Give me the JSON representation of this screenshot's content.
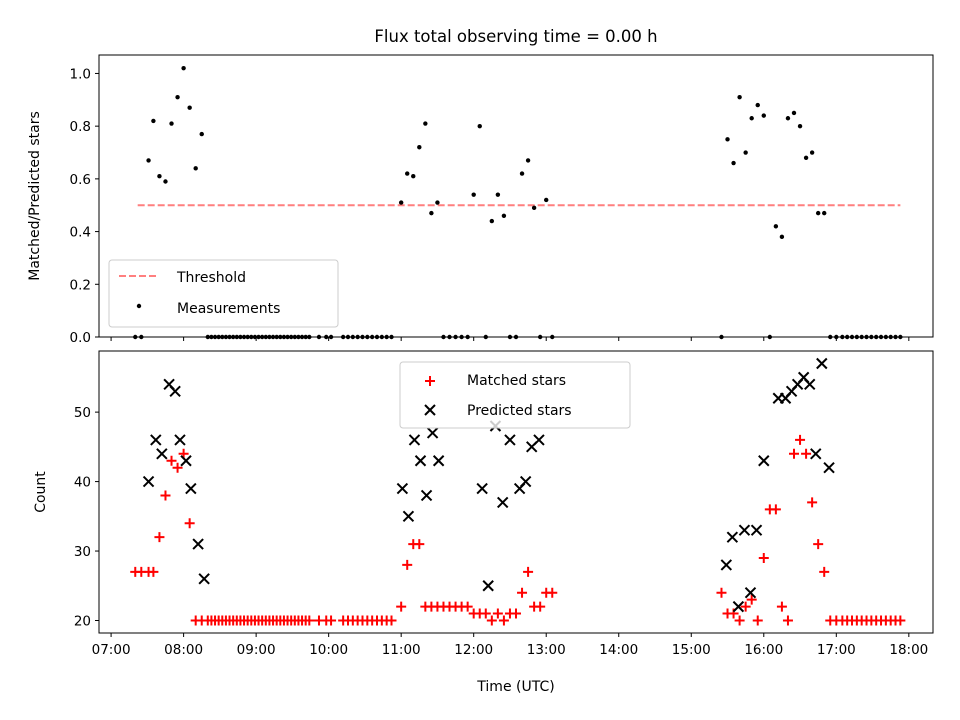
{
  "title": "Flux total observing time = 0.00 h",
  "chart_data": [
    {
      "type": "scatter",
      "ylabel": "Matched/Predicted stars",
      "xlabel": "",
      "xlim": [
        "06:50",
        "18:20"
      ],
      "ylim": [
        0,
        1.07
      ],
      "yticks": [
        "0.0",
        "0.2",
        "0.4",
        "0.6",
        "0.8",
        "1.0"
      ],
      "legend_position": "lower-left",
      "series": [
        {
          "name": "Threshold",
          "kind": "line",
          "style": "dashed",
          "color": "#ff7f7f",
          "x": [
            "07:22",
            "17:53"
          ],
          "y": [
            0.5,
            0.5
          ]
        },
        {
          "name": "Measurements",
          "kind": "point",
          "color": "#000000",
          "x": [
            "07:20",
            "07:25",
            "07:31",
            "07:35",
            "07:40",
            "07:45",
            "07:50",
            "07:55",
            "08:00",
            "08:05",
            "08:10",
            "08:15",
            "08:20",
            "08:23",
            "08:26",
            "08:29",
            "08:32",
            "08:35",
            "08:38",
            "08:41",
            "08:44",
            "08:47",
            "08:50",
            "08:53",
            "08:56",
            "08:59",
            "09:02",
            "09:05",
            "09:08",
            "09:11",
            "09:14",
            "09:17",
            "09:20",
            "09:23",
            "09:26",
            "09:29",
            "09:32",
            "09:35",
            "09:38",
            "09:41",
            "09:44",
            "09:52",
            "09:58",
            "10:02",
            "10:12",
            "10:16",
            "10:20",
            "10:24",
            "10:28",
            "10:32",
            "10:36",
            "10:40",
            "10:44",
            "10:48",
            "10:52",
            "11:00",
            "11:05",
            "11:10",
            "11:15",
            "11:20",
            "11:25",
            "11:30",
            "11:35",
            "11:40",
            "11:45",
            "11:50",
            "11:55",
            "12:00",
            "12:05",
            "12:10",
            "12:15",
            "12:20",
            "12:25",
            "12:30",
            "12:35",
            "12:40",
            "12:45",
            "12:50",
            "12:55",
            "13:00",
            "13:05",
            "15:25",
            "15:30",
            "15:35",
            "15:40",
            "15:45",
            "15:50",
            "15:55",
            "16:00",
            "16:05",
            "16:10",
            "16:15",
            "16:20",
            "16:25",
            "16:30",
            "16:35",
            "16:40",
            "16:45",
            "16:50",
            "16:55",
            "17:00",
            "17:05",
            "17:09",
            "17:13",
            "17:17",
            "17:21",
            "17:25",
            "17:29",
            "17:33",
            "17:37",
            "17:41",
            "17:45",
            "17:49",
            "17:53"
          ],
          "y": [
            0,
            0,
            0.67,
            0.82,
            0.61,
            0.59,
            0.81,
            0.91,
            1.02,
            0.87,
            0.64,
            0.77,
            0,
            0,
            0,
            0,
            0,
            0,
            0,
            0,
            0,
            0,
            0,
            0,
            0,
            0,
            0,
            0,
            0,
            0,
            0,
            0,
            0,
            0,
            0,
            0,
            0,
            0,
            0,
            0,
            0,
            0,
            0,
            0,
            0,
            0,
            0,
            0,
            0,
            0,
            0,
            0,
            0,
            0,
            0,
            0.51,
            0.62,
            0.61,
            0.72,
            0.81,
            0.47,
            0.51,
            0,
            0,
            0,
            0,
            0,
            0.54,
            0.8,
            0,
            0.44,
            0.54,
            0.46,
            0,
            0,
            0.62,
            0.67,
            0.49,
            0,
            0.52,
            0,
            0,
            0.75,
            0.66,
            0.91,
            0.7,
            0.83,
            0.88,
            0.84,
            0,
            0.42,
            0.38,
            0.83,
            0.85,
            0.8,
            0.68,
            0.7,
            0.47,
            0.47,
            0,
            0,
            0,
            0,
            0,
            0,
            0,
            0,
            0,
            0,
            0,
            0,
            0,
            0,
            0
          ]
        }
      ]
    },
    {
      "type": "scatter",
      "ylabel": "Count",
      "xlabel": "Time (UTC)",
      "xlim": [
        "06:50",
        "18:20"
      ],
      "ylim": [
        18.2,
        58.8
      ],
      "yticks": [
        "20",
        "30",
        "40",
        "50"
      ],
      "xticks": [
        "07:00",
        "08:00",
        "09:00",
        "10:00",
        "11:00",
        "12:00",
        "13:00",
        "14:00",
        "15:00",
        "16:00",
        "17:00",
        "18:00"
      ],
      "legend_position": "upper-center",
      "series": [
        {
          "name": "Matched stars",
          "marker": "plus",
          "color": "#ff0000",
          "x": [
            "07:20",
            "07:25",
            "07:31",
            "07:35",
            "07:40",
            "07:45",
            "07:50",
            "07:55",
            "08:00",
            "08:05",
            "08:10",
            "08:15",
            "08:20",
            "08:23",
            "08:26",
            "08:29",
            "08:32",
            "08:35",
            "08:38",
            "08:41",
            "08:44",
            "08:47",
            "08:50",
            "08:53",
            "08:56",
            "08:59",
            "09:02",
            "09:05",
            "09:08",
            "09:11",
            "09:14",
            "09:17",
            "09:20",
            "09:23",
            "09:26",
            "09:29",
            "09:32",
            "09:35",
            "09:38",
            "09:41",
            "09:44",
            "09:52",
            "09:58",
            "10:02",
            "10:12",
            "10:16",
            "10:20",
            "10:24",
            "10:28",
            "10:32",
            "10:36",
            "10:40",
            "10:44",
            "10:48",
            "10:52",
            "11:00",
            "11:05",
            "11:10",
            "11:15",
            "11:20",
            "11:25",
            "11:30",
            "11:35",
            "11:40",
            "11:45",
            "11:50",
            "11:55",
            "12:00",
            "12:05",
            "12:10",
            "12:15",
            "12:20",
            "12:25",
            "12:30",
            "12:35",
            "12:40",
            "12:45",
            "12:50",
            "12:55",
            "13:00",
            "13:05",
            "15:25",
            "15:30",
            "15:35",
            "15:40",
            "15:45",
            "15:50",
            "15:55",
            "16:00",
            "16:05",
            "16:10",
            "16:15",
            "16:20",
            "16:25",
            "16:30",
            "16:35",
            "16:40",
            "16:45",
            "16:50",
            "16:55",
            "17:00",
            "17:05",
            "17:09",
            "17:13",
            "17:17",
            "17:21",
            "17:25",
            "17:29",
            "17:33",
            "17:37",
            "17:41",
            "17:45",
            "17:49",
            "17:53"
          ],
          "y": [
            27,
            27,
            27,
            27,
            32,
            38,
            43,
            42,
            44,
            34,
            20,
            20,
            20,
            20,
            20,
            20,
            20,
            20,
            20,
            20,
            20,
            20,
            20,
            20,
            20,
            20,
            20,
            20,
            20,
            20,
            20,
            20,
            20,
            20,
            20,
            20,
            20,
            20,
            20,
            20,
            20,
            20,
            20,
            20,
            20,
            20,
            20,
            20,
            20,
            20,
            20,
            20,
            20,
            20,
            20,
            22,
            28,
            31,
            31,
            22,
            22,
            22,
            22,
            22,
            22,
            22,
            22,
            21,
            21,
            21,
            20,
            21,
            20,
            21,
            21,
            24,
            27,
            22,
            22,
            24,
            24,
            24,
            21,
            21,
            20,
            22,
            23,
            20,
            29,
            36,
            36,
            22,
            20,
            44,
            46,
            44,
            37,
            31,
            27,
            20,
            20,
            20,
            20,
            20,
            20,
            20,
            20,
            20,
            20,
            20,
            20,
            20,
            20,
            20
          ]
        },
        {
          "name": "Predicted stars",
          "marker": "x",
          "color": "#000000",
          "x": [
            "07:31",
            "07:37",
            "07:42",
            "07:48",
            "07:53",
            "07:57",
            "08:02",
            "08:06",
            "08:12",
            "08:17",
            "11:01",
            "11:06",
            "11:11",
            "11:16",
            "11:21",
            "11:26",
            "11:31",
            "12:07",
            "12:12",
            "12:18",
            "12:24",
            "12:30",
            "12:38",
            "12:43",
            "12:48",
            "12:54",
            "15:29",
            "15:34",
            "15:39",
            "15:44",
            "15:49",
            "15:54",
            "16:00",
            "16:12",
            "16:18",
            "16:23",
            "16:28",
            "16:33",
            "16:38",
            "16:43",
            "16:48",
            "16:54"
          ],
          "y": [
            40,
            46,
            44,
            54,
            53,
            46,
            43,
            39,
            31,
            26,
            39,
            35,
            46,
            43,
            38,
            47,
            43,
            39,
            25,
            48,
            37,
            46,
            39,
            40,
            45,
            46,
            28,
            32,
            22,
            33,
            24,
            33,
            43,
            52,
            52,
            53,
            54,
            55,
            54,
            44,
            57,
            42
          ]
        }
      ]
    }
  ]
}
